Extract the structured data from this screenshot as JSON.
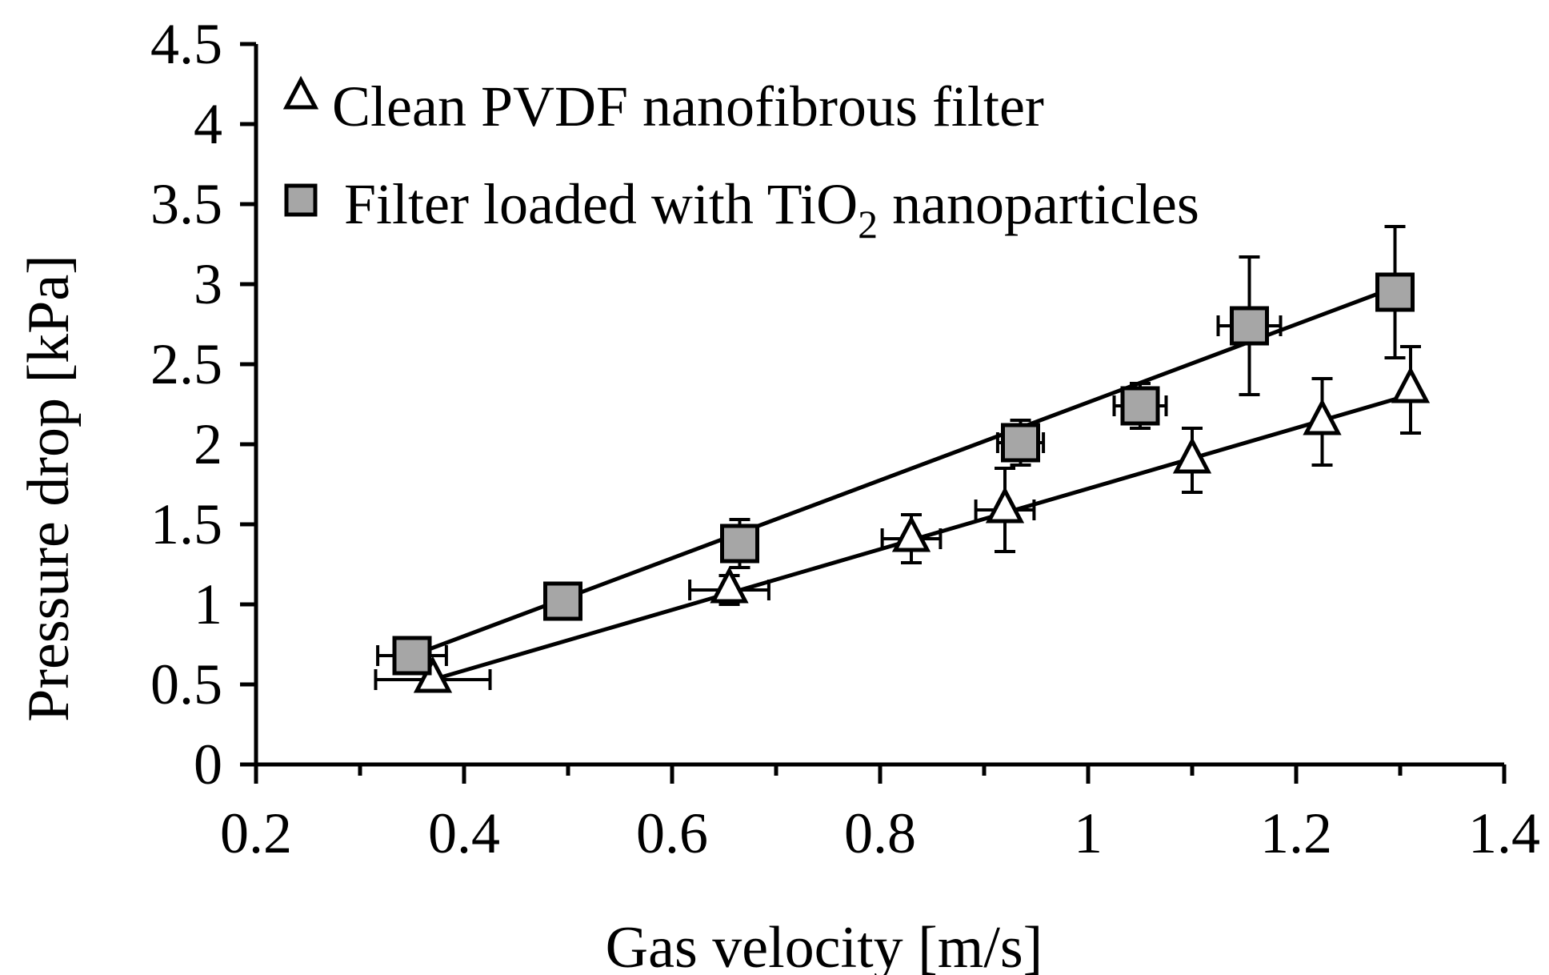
{
  "chart_data": {
    "type": "scatter",
    "xlabel": "Gas velocity [m/s]",
    "ylabel": "Pressure drop [kPa]",
    "xlim": [
      0.2,
      1.4
    ],
    "ylim": [
      0,
      4.5
    ],
    "x_major_ticks": [
      0.2,
      0.4,
      0.6,
      0.8,
      1,
      1.2,
      1.4
    ],
    "x_tick_labels": [
      "0.2",
      "0.4",
      "0.6",
      "0.8",
      "1",
      "1.2",
      "1.4"
    ],
    "x_minor_step": 0.1,
    "y_ticks": [
      0,
      0.5,
      1,
      1.5,
      2,
      2.5,
      3,
      3.5,
      4,
      4.5
    ],
    "y_tick_labels": [
      "0",
      "0.5",
      "1",
      "1.5",
      "2",
      "2.5",
      "3",
      "3.5",
      "4",
      "4.5"
    ],
    "grid": false,
    "legend_position": "top-left",
    "series": [
      {
        "name": "Clean PVDF nanofibrous filter",
        "marker": "open-triangle",
        "points": [
          {
            "x": 0.37,
            "y": 0.53,
            "xerr": 0.055,
            "yerr": 0
          },
          {
            "x": 0.655,
            "y": 1.09,
            "xerr": 0.038,
            "yerr": 0.09
          },
          {
            "x": 0.83,
            "y": 1.41,
            "xerr": 0.028,
            "yerr": 0.15
          },
          {
            "x": 0.92,
            "y": 1.59,
            "xerr": 0.028,
            "yerr": 0.26
          },
          {
            "x": 1.1,
            "y": 1.9,
            "xerr": 0,
            "yerr": 0.2
          },
          {
            "x": 1.225,
            "y": 2.14,
            "xerr": 0,
            "yerr": 0.27
          },
          {
            "x": 1.31,
            "y": 2.34,
            "xerr": 0,
            "yerr": 0.27
          }
        ],
        "trendline": [
          [
            0.37,
            0.53
          ],
          [
            1.31,
            2.31
          ]
        ]
      },
      {
        "name": "Filter loaded with TiO2 nanoparticles",
        "name_parts": {
          "main": "Filter loaded with TiO",
          "sub": "2",
          "tail": " nanoparticles"
        },
        "marker": "gray-square",
        "points": [
          {
            "x": 0.35,
            "y": 0.68,
            "xerr": 0.033,
            "yerr": 0.06
          },
          {
            "x": 0.495,
            "y": 1.02,
            "xerr": 0,
            "yerr": 0
          },
          {
            "x": 0.665,
            "y": 1.38,
            "xerr": 0.012,
            "yerr": 0.15
          },
          {
            "x": 0.935,
            "y": 2.01,
            "xerr": 0.022,
            "yerr": 0.14
          },
          {
            "x": 1.05,
            "y": 2.24,
            "xerr": 0.025,
            "yerr": 0.14
          },
          {
            "x": 1.155,
            "y": 2.74,
            "xerr": 0.03,
            "yerr": 0.43
          },
          {
            "x": 1.295,
            "y": 2.95,
            "xerr": 0,
            "yerr": 0.41
          }
        ],
        "trendline": [
          [
            0.35,
            0.68
          ],
          [
            1.295,
            2.98
          ]
        ]
      }
    ]
  },
  "colors": {
    "axis": "#000000",
    "square_fill": "#a6a6a6",
    "triangle_fill": "#ffffff",
    "line": "#000000"
  }
}
